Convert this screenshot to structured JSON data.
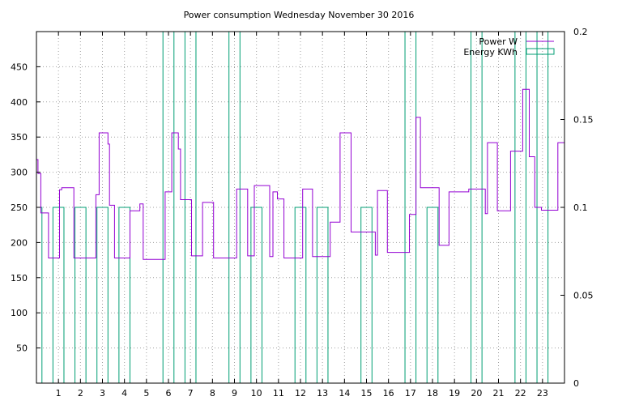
{
  "chart_data": {
    "type": "line",
    "title": "Power consumption Wednesday November 30 2016",
    "xlabel": "",
    "ylabel": "",
    "y2label": "",
    "xlim": [
      0,
      24
    ],
    "ylim": [
      0,
      500
    ],
    "y2lim": [
      0,
      0.2
    ],
    "x_ticks": [
      1,
      2,
      3,
      4,
      5,
      6,
      7,
      8,
      9,
      10,
      11,
      12,
      13,
      14,
      15,
      16,
      17,
      18,
      19,
      20,
      21,
      22,
      23
    ],
    "y_ticks": [
      50,
      100,
      150,
      200,
      250,
      300,
      350,
      400,
      450
    ],
    "y2_ticks": [
      0,
      0.05,
      0.1,
      0.15,
      0.2
    ],
    "y2_tick_labels": [
      "0",
      "0.05",
      "0.1",
      "0.15",
      "0.2"
    ],
    "grid": true,
    "legend_position": "top-right",
    "colors": {
      "power": "#9400d3",
      "energy": "#009e73"
    },
    "series": [
      {
        "name": "Power W",
        "axis": "y",
        "style": "step",
        "points": [
          [
            0.0,
            318
          ],
          [
            0.07,
            298
          ],
          [
            0.2,
            242
          ],
          [
            0.55,
            178
          ],
          [
            1.05,
            275
          ],
          [
            1.15,
            278
          ],
          [
            1.7,
            178
          ],
          [
            2.2,
            178
          ],
          [
            2.7,
            268
          ],
          [
            2.85,
            356
          ],
          [
            3.25,
            340
          ],
          [
            3.32,
            253
          ],
          [
            3.55,
            178
          ],
          [
            4.25,
            245
          ],
          [
            4.7,
            255
          ],
          [
            4.85,
            176
          ],
          [
            5.85,
            272
          ],
          [
            6.15,
            356
          ],
          [
            6.45,
            333
          ],
          [
            6.55,
            261
          ],
          [
            7.05,
            181
          ],
          [
            7.55,
            257
          ],
          [
            8.05,
            178
          ],
          [
            9.1,
            276
          ],
          [
            9.6,
            181
          ],
          [
            9.9,
            281
          ],
          [
            10.6,
            180
          ],
          [
            10.75,
            272
          ],
          [
            10.95,
            262
          ],
          [
            11.25,
            178
          ],
          [
            12.1,
            276
          ],
          [
            12.55,
            180
          ],
          [
            13.35,
            229
          ],
          [
            13.8,
            356
          ],
          [
            14.3,
            215
          ],
          [
            15.4,
            182
          ],
          [
            15.5,
            274
          ],
          [
            15.95,
            186
          ],
          [
            16.95,
            240
          ],
          [
            17.25,
            378
          ],
          [
            17.45,
            278
          ],
          [
            18.3,
            196
          ],
          [
            18.75,
            272
          ],
          [
            19.65,
            276
          ],
          [
            20.4,
            241
          ],
          [
            20.5,
            342
          ],
          [
            20.95,
            245
          ],
          [
            21.55,
            330
          ],
          [
            22.1,
            418
          ],
          [
            22.4,
            322
          ],
          [
            22.65,
            250
          ],
          [
            22.95,
            246
          ],
          [
            23.7,
            342
          ],
          [
            24.0,
            342
          ]
        ]
      },
      {
        "name": "Energy KWh",
        "axis": "y2",
        "style": "boxes",
        "boxes": [
          [
            0.0,
            0.25,
            0.1
          ],
          [
            0.75,
            1.25,
            0.1
          ],
          [
            1.75,
            2.25,
            0.1
          ],
          [
            2.75,
            3.25,
            0.1
          ],
          [
            3.75,
            4.25,
            0.1
          ],
          [
            5.75,
            6.25,
            0.2
          ],
          [
            6.75,
            7.25,
            0.2
          ],
          [
            8.75,
            9.25,
            0.2
          ],
          [
            9.75,
            10.25,
            0.1
          ],
          [
            11.75,
            12.25,
            0.1
          ],
          [
            12.75,
            13.25,
            0.1
          ],
          [
            14.75,
            15.25,
            0.1
          ],
          [
            16.75,
            17.25,
            0.2
          ],
          [
            17.75,
            18.25,
            0.1
          ],
          [
            19.75,
            20.25,
            0.2
          ],
          [
            21.75,
            22.25,
            0.2
          ],
          [
            22.75,
            23.25,
            0.2
          ]
        ]
      }
    ]
  }
}
